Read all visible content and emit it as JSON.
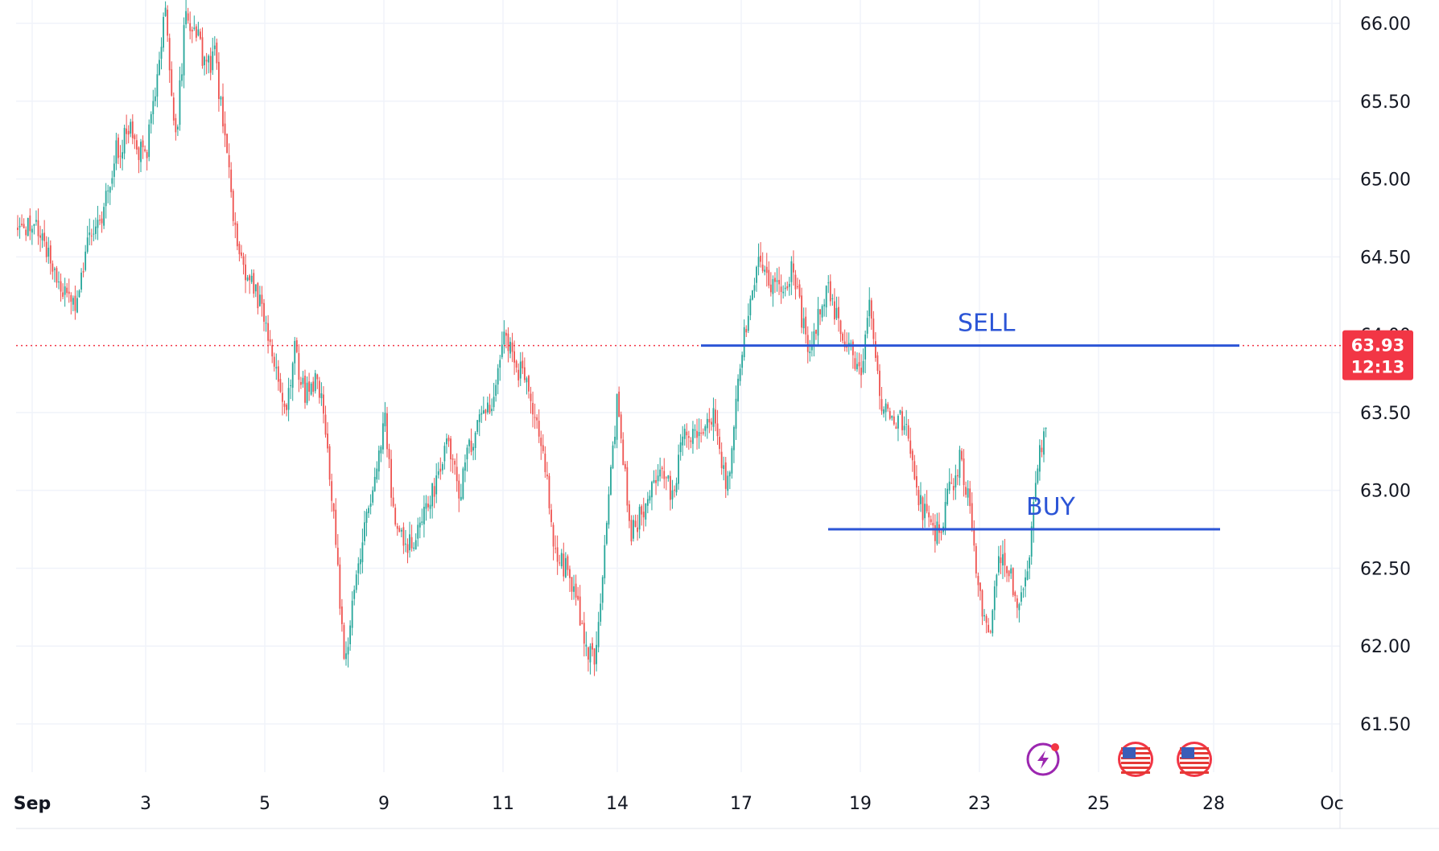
{
  "chart_data": {
    "type": "candlestick",
    "y_axis": {
      "ticks": [
        "66.00",
        "65.50",
        "65.00",
        "64.50",
        "63.50",
        "63.00",
        "62.50",
        "62.00",
        "61.50"
      ],
      "range": [
        61.2,
        66.15
      ]
    },
    "x_axis": {
      "ticks": [
        "Sep",
        "3",
        "5",
        "9",
        "11",
        "14",
        "17",
        "19",
        "23",
        "25",
        "28",
        "Oc"
      ]
    },
    "grid": true,
    "current_price": {
      "value": 63.93,
      "label": "63.93",
      "countdown": "12:13",
      "color": "#f23645"
    },
    "levels": [
      {
        "name": "SELL",
        "label": "SELL",
        "price": 63.93,
        "from": "17",
        "to": "28",
        "color": "#2c55d6"
      },
      {
        "name": "BUY",
        "label": "BUY",
        "price": 62.75,
        "from": "19",
        "to": "28",
        "color": "#2c55d6"
      }
    ],
    "path": [
      [
        "Sep",
        64.7
      ],
      [
        "Sep",
        64.55
      ],
      [
        "Sep",
        64.3
      ],
      [
        "Sep",
        64.2
      ],
      [
        "Sep",
        64.6
      ],
      [
        "Sep",
        64.8
      ],
      [
        "Sep",
        65.2
      ],
      [
        "Sep",
        65.3
      ],
      [
        "3",
        65.1
      ],
      [
        "3",
        65.6
      ],
      [
        "3",
        66.1
      ],
      [
        "3",
        65.2
      ],
      [
        "3",
        66.05
      ],
      [
        "3",
        66.0
      ],
      [
        "3",
        65.7
      ],
      [
        "3",
        65.8
      ],
      [
        "3",
        65.2
      ],
      [
        "3",
        64.7
      ],
      [
        "3",
        64.4
      ],
      [
        "3",
        64.3
      ],
      [
        "5",
        64.1
      ],
      [
        "5",
        63.8
      ],
      [
        "5",
        63.5
      ],
      [
        "5",
        63.9
      ],
      [
        "5",
        63.6
      ],
      [
        "5",
        63.7
      ],
      [
        "5",
        63.5
      ],
      [
        "5",
        62.8
      ],
      [
        "5",
        61.9
      ],
      [
        "5",
        62.3
      ],
      [
        "5",
        62.8
      ],
      [
        "5",
        63.0
      ],
      [
        "9",
        63.5
      ],
      [
        "9",
        62.8
      ],
      [
        "9",
        62.6
      ],
      [
        "9",
        62.7
      ],
      [
        "9",
        62.9
      ],
      [
        "9",
        63.1
      ],
      [
        "9",
        63.3
      ],
      [
        "9",
        63.0
      ],
      [
        "9",
        63.3
      ],
      [
        "9",
        63.5
      ],
      [
        "9",
        63.6
      ],
      [
        "11",
        64.0
      ],
      [
        "11",
        63.85
      ],
      [
        "11",
        63.7
      ],
      [
        "11",
        63.5
      ],
      [
        "11",
        63.2
      ],
      [
        "11",
        62.6
      ],
      [
        "11",
        62.5
      ],
      [
        "11",
        62.3
      ],
      [
        "11",
        62.0
      ],
      [
        "11",
        61.95
      ],
      [
        "11",
        62.8
      ],
      [
        "14",
        63.6
      ],
      [
        "14",
        62.7
      ],
      [
        "14",
        62.9
      ],
      [
        "14",
        63.1
      ],
      [
        "14",
        63.0
      ],
      [
        "14",
        63.4
      ],
      [
        "14",
        63.35
      ],
      [
        "14",
        63.5
      ],
      [
        "14",
        63.0
      ],
      [
        "17",
        63.9
      ],
      [
        "17",
        64.5
      ],
      [
        "17",
        64.3
      ],
      [
        "17",
        64.4
      ],
      [
        "17",
        63.9
      ],
      [
        "17",
        64.3
      ],
      [
        "17",
        64.0
      ],
      [
        "19",
        63.7
      ],
      [
        "19",
        64.2
      ],
      [
        "19",
        63.6
      ],
      [
        "19",
        63.4
      ],
      [
        "19",
        63.5
      ],
      [
        "19",
        63.3
      ],
      [
        "19",
        62.9
      ],
      [
        "19",
        62.8
      ],
      [
        "19",
        62.7
      ],
      [
        "19",
        63.0
      ],
      [
        "19",
        63.2
      ],
      [
        "19",
        62.9
      ],
      [
        "23",
        62.3
      ],
      [
        "23",
        62.05
      ],
      [
        "23",
        62.6
      ],
      [
        "23",
        62.5
      ],
      [
        "23",
        62.2
      ],
      [
        "23",
        62.6
      ],
      [
        "23",
        63.2
      ],
      [
        "23",
        63.5
      ],
      [
        "23",
        63.95
      ],
      [
        "23",
        63.6
      ],
      [
        "23",
        64.05
      ],
      [
        "23",
        63.93
      ]
    ]
  },
  "icons": [
    {
      "name": "economic-event-flash-icon",
      "color": "#9c27b0"
    },
    {
      "name": "us-flag-icon-1",
      "color": "#f23645"
    },
    {
      "name": "us-flag-icon-2",
      "color": "#f23645"
    }
  ],
  "colors": {
    "up": "#26a69a",
    "down": "#ef5350",
    "grid": "#f0f3fa",
    "axis_text": "#131722"
  }
}
